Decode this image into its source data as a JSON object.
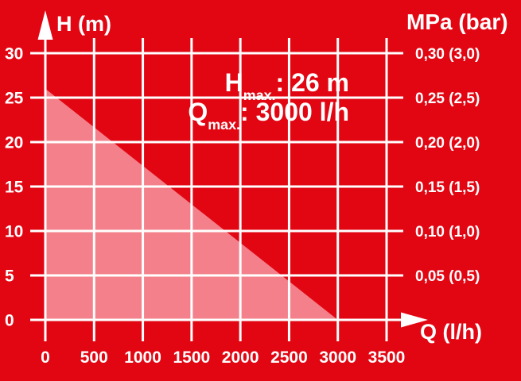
{
  "colors": {
    "background": "#E20613",
    "grid": "#FFFFFF",
    "area_fill": "#F3808A",
    "text": "#FFFFFF"
  },
  "chart_data": {
    "type": "area",
    "title": "",
    "x_axis": {
      "label": "Q (l/h)",
      "ticks": [
        0,
        500,
        1000,
        1500,
        2000,
        2500,
        3000,
        3500
      ],
      "range": [
        0,
        3500
      ]
    },
    "y_axis_left": {
      "label": "H (m)",
      "ticks": [
        0,
        5,
        10,
        15,
        20,
        25,
        30
      ],
      "range": [
        0,
        30
      ]
    },
    "y_axis_right": {
      "label": "MPa (bar)",
      "ticks": [
        {
          "m": 30,
          "label": "0,30 (3,0)"
        },
        {
          "m": 25,
          "label": "0,25 (2,5)"
        },
        {
          "m": 20,
          "label": "0,20 (2,0)"
        },
        {
          "m": 15,
          "label": "0,15 (1,5)"
        },
        {
          "m": 10,
          "label": "0,10 (1,0)"
        },
        {
          "m": 5,
          "label": "0,05 (0,5)"
        }
      ]
    },
    "series": [
      {
        "name": "operating-range",
        "points": [
          [
            0,
            26
          ],
          [
            3000,
            0
          ],
          [
            0,
            0
          ]
        ]
      }
    ],
    "h_max_m": 26,
    "q_max_lh": 3000,
    "annotation": {
      "h_sym": "H",
      "h_sub": "max.",
      "h_rest": ": 26 m",
      "q_sym": "Q",
      "q_sub": "max.",
      "q_rest": ": 3000 l/h"
    },
    "grid": true,
    "legend": "none"
  }
}
